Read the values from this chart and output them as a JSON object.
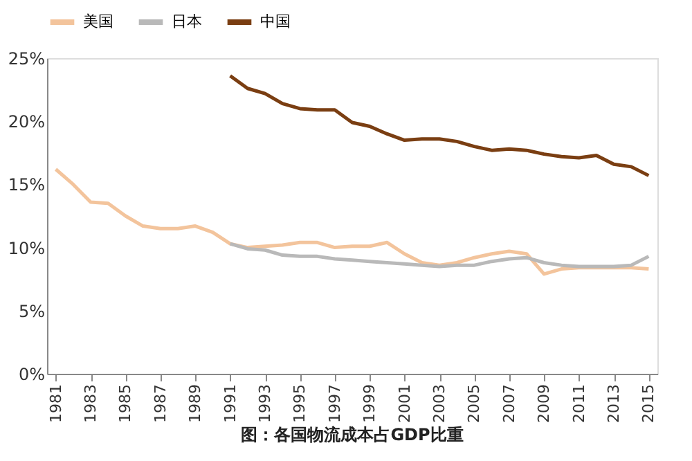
{
  "chart_data": {
    "type": "line",
    "x": [
      1981,
      1982,
      1983,
      1984,
      1985,
      1986,
      1987,
      1988,
      1989,
      1990,
      1991,
      1992,
      1993,
      1994,
      1995,
      1996,
      1997,
      1998,
      1999,
      2000,
      2001,
      2002,
      2003,
      2004,
      2005,
      2006,
      2007,
      2008,
      2009,
      2010,
      2011,
      2012,
      2013,
      2014,
      2015
    ],
    "series": [
      {
        "name": "美国",
        "color": "#f3c49c",
        "values": [
          16.2,
          15.0,
          13.6,
          13.5,
          12.5,
          11.7,
          11.5,
          11.5,
          11.7,
          11.2,
          10.3,
          10.0,
          10.1,
          10.2,
          10.4,
          10.4,
          10.0,
          10.1,
          10.1,
          10.4,
          9.5,
          8.8,
          8.6,
          8.8,
          9.2,
          9.5,
          9.7,
          9.5,
          7.9,
          8.3,
          8.4,
          8.4,
          8.4,
          8.4,
          8.3
        ]
      },
      {
        "name": "日本",
        "color": "#b9b9b9",
        "x": [
          1991,
          1992,
          1993,
          1994,
          1995,
          1996,
          1997,
          1998,
          1999,
          2000,
          2001,
          2002,
          2003,
          2004,
          2005,
          2006,
          2007,
          2008,
          2009,
          2010,
          2011,
          2012,
          2013,
          2014,
          2015
        ],
        "values": [
          10.3,
          9.9,
          9.8,
          9.4,
          9.3,
          9.3,
          9.1,
          9.0,
          8.9,
          8.8,
          8.7,
          8.6,
          8.5,
          8.6,
          8.6,
          8.9,
          9.1,
          9.2,
          8.8,
          8.6,
          8.5,
          8.5,
          8.5,
          8.6,
          9.3
        ]
      },
      {
        "name": "中国",
        "color": "#7a3e12",
        "x": [
          1991,
          1992,
          1993,
          1994,
          1995,
          1996,
          1997,
          1998,
          1999,
          2000,
          2001,
          2002,
          2003,
          2004,
          2005,
          2006,
          2007,
          2008,
          2009,
          2010,
          2011,
          2012,
          2013,
          2014,
          2015
        ],
        "values": [
          23.6,
          22.6,
          22.2,
          21.4,
          21.0,
          20.9,
          20.9,
          19.9,
          19.6,
          19.0,
          18.5,
          18.6,
          18.6,
          18.4,
          18.0,
          17.7,
          17.8,
          17.7,
          17.4,
          17.2,
          17.1,
          17.3,
          16.6,
          16.4,
          15.7
        ]
      }
    ],
    "xlim": [
      1980.5,
      2015.5
    ],
    "xticks": [
      1981,
      1983,
      1985,
      1987,
      1989,
      1991,
      1993,
      1995,
      1997,
      1999,
      2001,
      2003,
      2005,
      2007,
      2009,
      2011,
      2013,
      2015
    ],
    "ylim": [
      0,
      25
    ],
    "yticks": [
      {
        "value": 0,
        "label": "0%"
      },
      {
        "value": 5,
        "label": "5%"
      },
      {
        "value": 10,
        "label": "10%"
      },
      {
        "value": 15,
        "label": "15%"
      },
      {
        "value": 20,
        "label": "20%"
      },
      {
        "value": 25,
        "label": "25%"
      }
    ],
    "grid": false,
    "legend": "top",
    "marker": "none",
    "line_style": "solid",
    "annotations": [
      "图：各国物流成本占GDP比重"
    ]
  }
}
